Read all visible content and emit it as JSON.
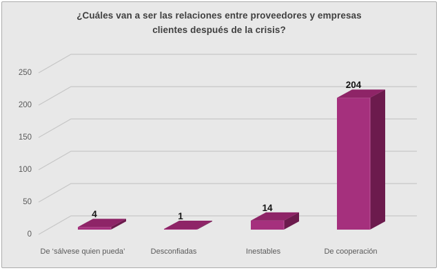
{
  "panel": {
    "background": "#E8E8E8",
    "border_color": "#ABABAB"
  },
  "chart_data": {
    "type": "bar",
    "style": "3d-column",
    "title": "¿Cuáles van a ser las relaciones entre proveedores y empresas clientes después de la crisis?",
    "title_lines": [
      "¿Cuáles van a ser las relaciones entre proveedores y empresas",
      "clientes después de la crisis?"
    ],
    "categories": [
      "De ‘sálvese quien pueda’",
      "Desconfiadas",
      "Inestables",
      "De cooperación"
    ],
    "values": [
      4,
      1,
      14,
      204
    ],
    "data_labels": [
      "4",
      "1",
      "14",
      "204"
    ],
    "xlabel": "",
    "ylabel": "",
    "ylim": [
      0,
      250
    ],
    "yticks": [
      0,
      50,
      100,
      150,
      200,
      250
    ],
    "grid": true,
    "legend_position": "none",
    "colors": {
      "bar_front": "#A5307D",
      "bar_top": "#8E2467",
      "bar_side": "#6C1B4D",
      "bar_edge_highlight": "#C0589C",
      "grid": "#C6C6C6",
      "title_text": "#3F3F3F",
      "axis_text": "#595959",
      "data_label_text": "#141414"
    }
  }
}
